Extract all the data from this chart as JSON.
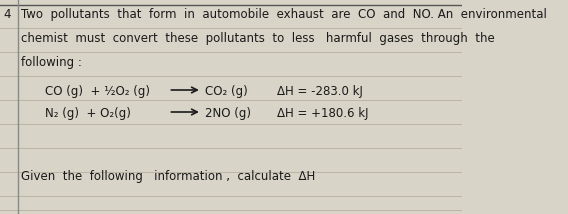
{
  "background_color": "#d8d4c8",
  "text_color": "#1a1a1a",
  "number_label": "4",
  "line1": "Two  pollutants  that  form  in  automobile  exhaust  are  CO  and  NO. An  environmental",
  "line2": "chemist  must  convert  these  pollutants  to  less   harmful  gases  through  the",
  "line3": "following :",
  "rxn1_left": "CO (g)  + ½O₂ (g)",
  "rxn1_right": "CO₂ (g)",
  "rxn1_dH": "ΔH = -283.0 kJ",
  "rxn2_left": "N₂ (g)  + O₂(g)",
  "rxn2_right": "2NO (g)",
  "rxn2_dH": "ΔH = +180.6 kJ",
  "footer": "Given  the  following   information ,  calculate  ΔH",
  "ruled_line_color": "#b0a898",
  "margin_line_color": "#888888",
  "top_line_color": "#555555",
  "font_size_main": 8.5,
  "font_size_rxn": 8.5
}
